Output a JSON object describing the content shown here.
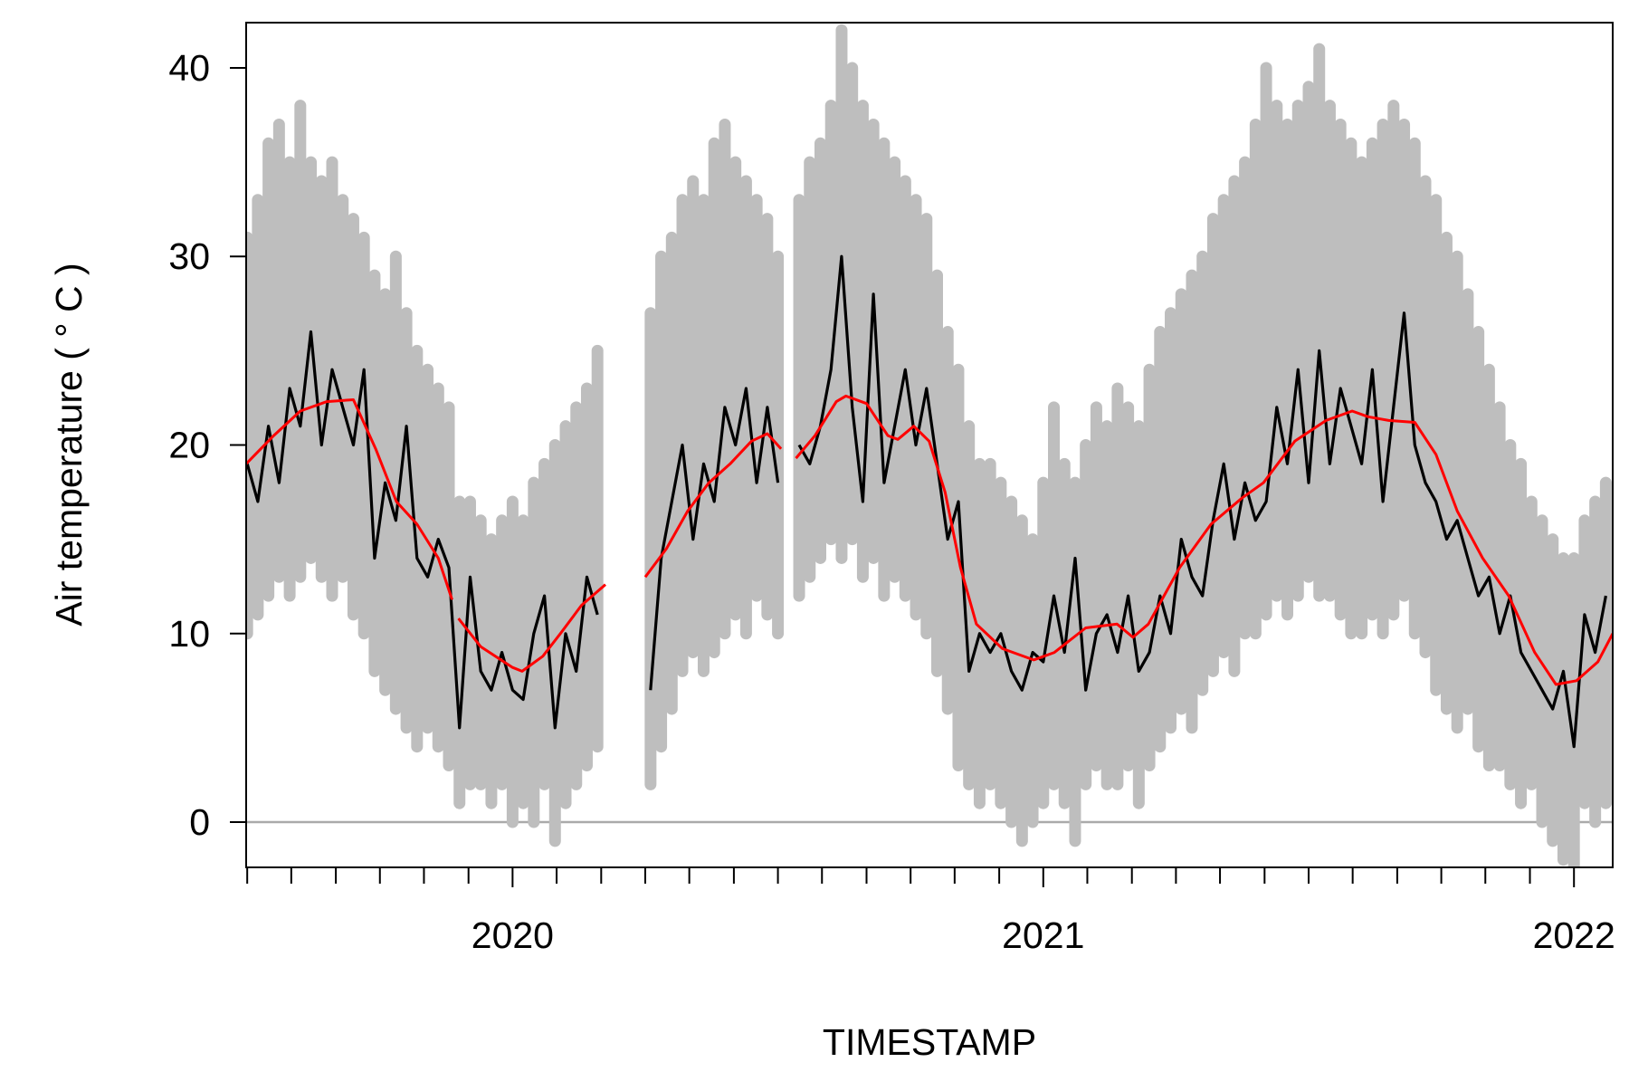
{
  "chart_data": {
    "type": "line",
    "x_label": "TIMESTAMP",
    "y_label": "Air temperature ( ° C )",
    "xlim": [
      2019.498,
      2022.073
    ],
    "ylim": [
      -2.4,
      42.4
    ],
    "xticks": [
      2020,
      2021,
      2022
    ],
    "x_minor_ticks": [
      2019.5,
      2019.583,
      2019.667,
      2019.75,
      2019.833,
      2019.917,
      2020.083,
      2020.167,
      2020.25,
      2020.333,
      2020.417,
      2020.5,
      2020.583,
      2020.667,
      2020.75,
      2020.833,
      2020.917,
      2021.083,
      2021.167,
      2021.25,
      2021.333,
      2021.417,
      2021.5,
      2021.583,
      2021.667,
      2021.75,
      2021.833,
      2021.917
    ],
    "yticks": [
      0,
      10,
      20,
      30,
      40
    ],
    "reference_line": 0,
    "x": [
      2019.5,
      2019.52,
      2019.54,
      2019.56,
      2019.58,
      2019.6,
      2019.62,
      2019.64,
      2019.66,
      2019.68,
      2019.7,
      2019.72,
      2019.74,
      2019.76,
      2019.78,
      2019.8,
      2019.82,
      2019.84,
      2019.86,
      2019.88,
      2019.9,
      2019.92,
      2019.94,
      2019.96,
      2019.98,
      2020,
      2020.02,
      2020.04,
      2020.06,
      2020.08,
      2020.1,
      2020.12,
      2020.14,
      2020.16,
      2020.18,
      2020.2,
      2020.22,
      2020.24,
      2020.26,
      2020.28,
      2020.3,
      2020.32,
      2020.34,
      2020.36,
      2020.38,
      2020.4,
      2020.42,
      2020.44,
      2020.46,
      2020.48,
      2020.5,
      2020.52,
      2020.54,
      2020.56,
      2020.58,
      2020.6,
      2020.62,
      2020.64,
      2020.66,
      2020.68,
      2020.7,
      2020.72,
      2020.74,
      2020.76,
      2020.78,
      2020.8,
      2020.82,
      2020.84,
      2020.86,
      2020.88,
      2020.9,
      2020.92,
      2020.94,
      2020.96,
      2020.98,
      2021,
      2021.02,
      2021.04,
      2021.06,
      2021.08,
      2021.1,
      2021.12,
      2021.14,
      2021.16,
      2021.18,
      2021.2,
      2021.22,
      2021.24,
      2021.26,
      2021.28,
      2021.3,
      2021.32,
      2021.34,
      2021.36,
      2021.38,
      2021.4,
      2021.42,
      2021.44,
      2021.46,
      2021.48,
      2021.5,
      2021.52,
      2021.54,
      2021.56,
      2021.58,
      2021.6,
      2021.62,
      2021.64,
      2021.66,
      2021.68,
      2021.7,
      2021.72,
      2021.74,
      2021.76,
      2021.78,
      2021.8,
      2021.82,
      2021.84,
      2021.86,
      2021.88,
      2021.9,
      2021.92,
      2021.94,
      2021.96,
      2021.98,
      2022,
      2022.02,
      2022.04,
      2022.06
    ],
    "series": [
      {
        "color": "#bebebe",
        "low": [
          10,
          11,
          12,
          13,
          12,
          13,
          14,
          13,
          12,
          13,
          11,
          10,
          8,
          7,
          6,
          5,
          4,
          5,
          4,
          3,
          1,
          2,
          2,
          1,
          2,
          0,
          1,
          0,
          2,
          -1,
          1,
          2,
          3,
          4,
          null,
          null,
          null,
          null,
          2,
          4,
          6,
          8,
          9,
          8,
          9,
          10,
          11,
          10,
          12,
          11,
          10,
          null,
          12,
          13,
          14,
          15,
          14,
          15,
          13,
          14,
          12,
          13,
          12,
          11,
          10,
          8,
          6,
          3,
          2,
          1,
          2,
          1,
          0,
          -1,
          0,
          1,
          2,
          1,
          -1,
          2,
          3,
          2,
          2,
          3,
          1,
          3,
          4,
          5,
          6,
          5,
          7,
          8,
          9,
          8,
          10,
          10,
          11,
          12,
          11,
          12,
          13,
          12,
          12,
          11,
          10,
          10,
          11,
          10,
          11,
          12,
          10,
          9,
          7,
          6,
          5,
          6,
          4,
          3,
          3,
          2,
          1,
          2,
          0,
          -1,
          -2,
          -3,
          1,
          0,
          1
        ],
        "high": [
          31,
          33,
          36,
          37,
          35,
          38,
          35,
          34,
          35,
          33,
          32,
          31,
          29,
          28,
          30,
          27,
          25,
          24,
          23,
          22,
          17,
          17,
          16,
          15,
          16,
          17,
          16,
          18,
          19,
          20,
          21,
          22,
          23,
          25,
          null,
          null,
          null,
          null,
          27,
          30,
          31,
          33,
          34,
          33,
          36,
          37,
          35,
          34,
          33,
          32,
          30,
          null,
          33,
          35,
          36,
          38,
          42,
          40,
          38,
          37,
          36,
          35,
          34,
          33,
          32,
          29,
          26,
          24,
          21,
          19,
          19,
          18,
          17,
          16,
          15,
          18,
          22,
          19,
          18,
          20,
          22,
          21,
          23,
          22,
          21,
          24,
          26,
          27,
          28,
          29,
          30,
          32,
          33,
          34,
          35,
          37,
          40,
          38,
          37,
          38,
          39,
          41,
          38,
          37,
          36,
          35,
          36,
          37,
          38,
          37,
          36,
          34,
          33,
          31,
          30,
          28,
          26,
          24,
          22,
          20,
          19,
          17,
          16,
          15,
          14,
          14,
          16,
          17,
          18
        ]
      },
      {
        "color": "#000000",
        "values": [
          19,
          17,
          21,
          18,
          23,
          21,
          26,
          20,
          24,
          22,
          20,
          24,
          14,
          18,
          16,
          21,
          14,
          13,
          15,
          13.5,
          5,
          13,
          8,
          7,
          9,
          7,
          6.5,
          10,
          12,
          5,
          10,
          8,
          13,
          11,
          null,
          null,
          null,
          null,
          7,
          14,
          17,
          20,
          15,
          19,
          17,
          22,
          20,
          23,
          18,
          22,
          18,
          null,
          20,
          19,
          21,
          24,
          30,
          22,
          17,
          28,
          18,
          21,
          24,
          20,
          23,
          19,
          15,
          17,
          8,
          10,
          9,
          10,
          8,
          7,
          9,
          8.5,
          12,
          9,
          14,
          7,
          10,
          11,
          9,
          12,
          8,
          9,
          12,
          10,
          15,
          13,
          12,
          16,
          19,
          15,
          18,
          16,
          17,
          22,
          19,
          24,
          18,
          25,
          19,
          23,
          21,
          19,
          24,
          17,
          22,
          27,
          20,
          18,
          17,
          15,
          16,
          14,
          12,
          13,
          10,
          12,
          9,
          8,
          7,
          6,
          8,
          4,
          11,
          9,
          12
        ]
      },
      {
        "color": "#ff0000",
        "x": [
          2019.498,
          2019.55,
          2019.6,
          2019.65,
          2019.7,
          2019.742,
          2019.781,
          2019.82,
          2019.86,
          2019.886,
          2019.892,
          2019.898,
          2019.94,
          2020.0,
          2020.018,
          2020.057,
          2020.09,
          2020.13,
          2020.175,
          2020.21,
          2020.25,
          2020.29,
          2020.33,
          2020.37,
          2020.41,
          2020.45,
          2020.48,
          2020.506,
          2020.52,
          2020.534,
          2020.57,
          2020.61,
          2020.628,
          2020.667,
          2020.707,
          2020.726,
          2020.756,
          2020.785,
          2020.815,
          2020.844,
          2020.874,
          2020.923,
          2020.982,
          2021.021,
          2021.08,
          2021.139,
          2021.169,
          2021.198,
          2021.257,
          2021.316,
          2021.375,
          2021.415,
          2021.474,
          2021.533,
          2021.582,
          2021.612,
          2021.651,
          2021.7,
          2021.74,
          2021.78,
          2021.828,
          2021.877,
          2021.926,
          2021.966,
          2022.005,
          2022.045,
          2022.073
        ],
        "values": [
          19,
          20.5,
          21.8,
          22.3,
          22.4,
          19.8,
          17,
          15.8,
          14,
          11.8,
          null,
          10.8,
          9.3,
          8.2,
          8,
          8.8,
          10,
          11.5,
          12.6,
          null,
          13,
          14.5,
          16.5,
          18,
          19,
          20.2,
          20.6,
          19.8,
          null,
          19.3,
          20.5,
          22.3,
          22.6,
          22.2,
          20.5,
          20.3,
          21,
          20.2,
          17.5,
          13.5,
          10.5,
          9.2,
          8.6,
          9,
          10.3,
          10.5,
          9.8,
          10.5,
          13.5,
          15.8,
          17.2,
          18,
          20.2,
          21.3,
          21.8,
          21.5,
          21.3,
          21.2,
          19.5,
          16.5,
          14,
          12,
          9,
          7.3,
          7.5,
          8.5,
          10
        ]
      }
    ]
  }
}
